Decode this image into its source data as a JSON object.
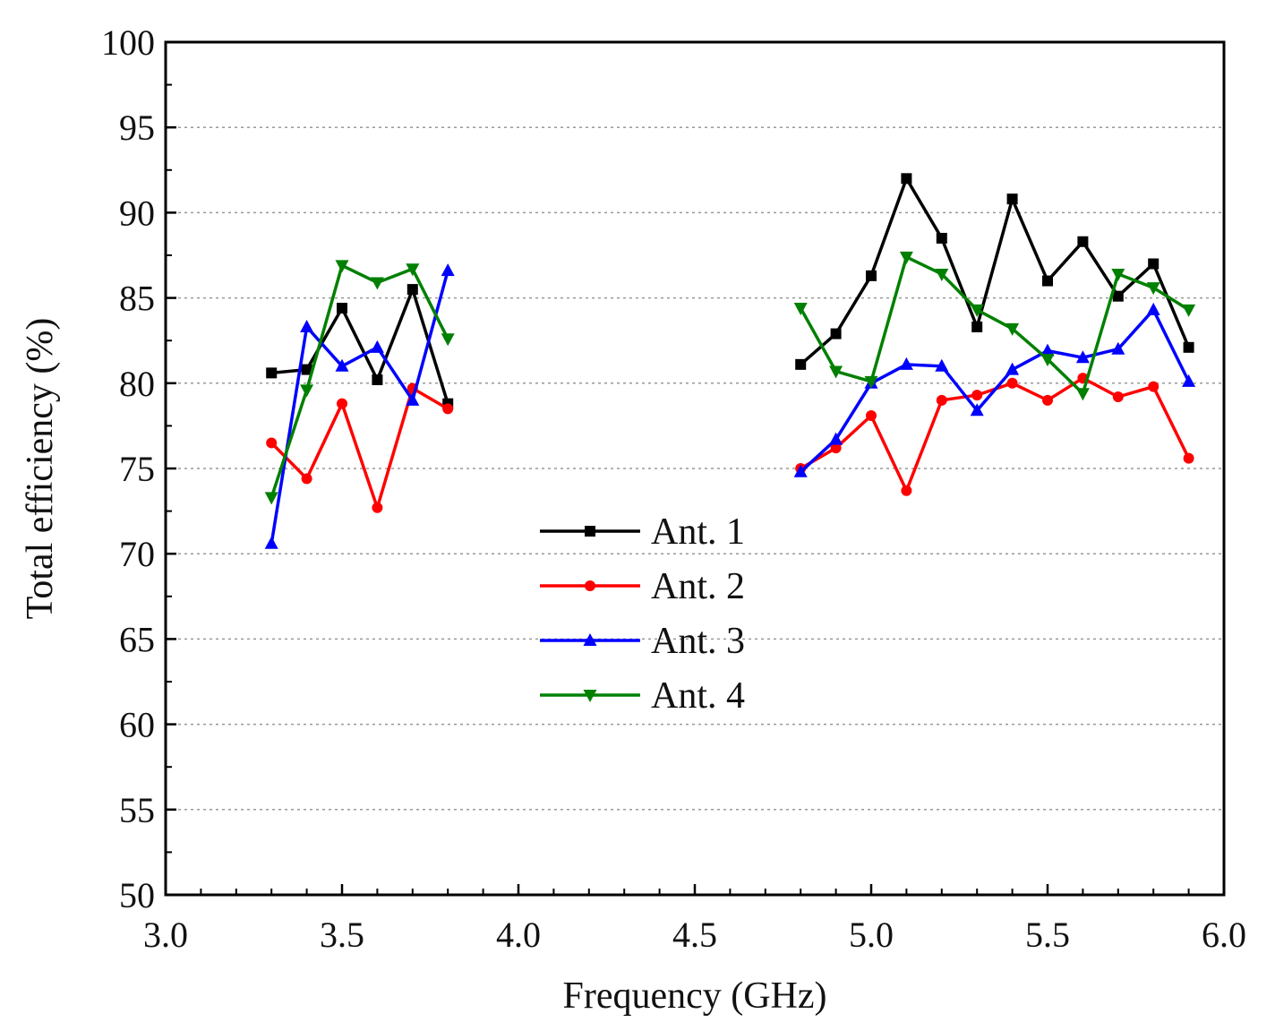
{
  "chart_data": {
    "type": "line",
    "title": "",
    "xlabel": "Frequency (GHz)",
    "ylabel": "Total efficiency (%)",
    "xlim": [
      3.0,
      6.0
    ],
    "ylim": [
      50,
      100
    ],
    "xticks": [
      "3.0",
      "3.5",
      "4.0",
      "4.5",
      "5.0",
      "5.5",
      "6.0"
    ],
    "yticks": [
      "50",
      "55",
      "60",
      "65",
      "70",
      "75",
      "80",
      "85",
      "90",
      "95",
      "100"
    ],
    "grid": "horizontal-dotted",
    "legend_position": "center",
    "series": [
      {
        "name": "Ant. 1",
        "color": "#000000",
        "marker": "square",
        "segments": [
          {
            "x": [
              3.3,
              3.4,
              3.5,
              3.6,
              3.7,
              3.8
            ],
            "y": [
              80.6,
              80.8,
              84.4,
              80.2,
              85.5,
              78.8
            ]
          },
          {
            "x": [
              4.8,
              4.9,
              5.0,
              5.1,
              5.2,
              5.3,
              5.4,
              5.5,
              5.6,
              5.7,
              5.8,
              5.9
            ],
            "y": [
              81.1,
              82.9,
              86.3,
              92.0,
              88.5,
              83.3,
              90.8,
              86.0,
              88.3,
              85.1,
              87.0,
              82.1
            ]
          }
        ]
      },
      {
        "name": "Ant. 2",
        "color": "#ff0000",
        "marker": "circle",
        "segments": [
          {
            "x": [
              3.3,
              3.4,
              3.5,
              3.6,
              3.7,
              3.8
            ],
            "y": [
              76.5,
              74.4,
              78.8,
              72.7,
              79.7,
              78.5
            ]
          },
          {
            "x": [
              4.8,
              4.9,
              5.0,
              5.1,
              5.2,
              5.3,
              5.4,
              5.5,
              5.6,
              5.7,
              5.8,
              5.9
            ],
            "y": [
              75.0,
              76.2,
              78.1,
              73.7,
              79.0,
              79.3,
              80.0,
              79.0,
              80.3,
              79.2,
              79.8,
              75.6
            ]
          }
        ]
      },
      {
        "name": "Ant. 3",
        "color": "#0000ff",
        "marker": "triangle-up",
        "segments": [
          {
            "x": [
              3.3,
              3.4,
              3.5,
              3.6,
              3.7,
              3.8
            ],
            "y": [
              70.6,
              83.3,
              81.0,
              82.1,
              79.0,
              86.6
            ]
          },
          {
            "x": [
              4.8,
              4.9,
              5.0,
              5.1,
              5.2,
              5.3,
              5.4,
              5.5,
              5.6,
              5.7,
              5.8,
              5.9
            ],
            "y": [
              74.8,
              76.7,
              80.0,
              81.1,
              81.0,
              78.4,
              80.8,
              81.9,
              81.5,
              82.0,
              84.3,
              80.1
            ]
          }
        ]
      },
      {
        "name": "Ant. 4",
        "color": "#008000",
        "marker": "triangle-down",
        "segments": [
          {
            "x": [
              3.3,
              3.4,
              3.5,
              3.6,
              3.7,
              3.8
            ],
            "y": [
              73.3,
              79.6,
              86.9,
              85.9,
              86.7,
              82.6
            ]
          },
          {
            "x": [
              4.8,
              4.9,
              5.0,
              5.1,
              5.2,
              5.3,
              5.4,
              5.5,
              5.6,
              5.7,
              5.8,
              5.9
            ],
            "y": [
              84.4,
              80.7,
              80.1,
              87.4,
              86.4,
              84.3,
              83.2,
              81.4,
              79.4,
              86.4,
              85.6,
              84.3
            ]
          }
        ]
      }
    ]
  }
}
